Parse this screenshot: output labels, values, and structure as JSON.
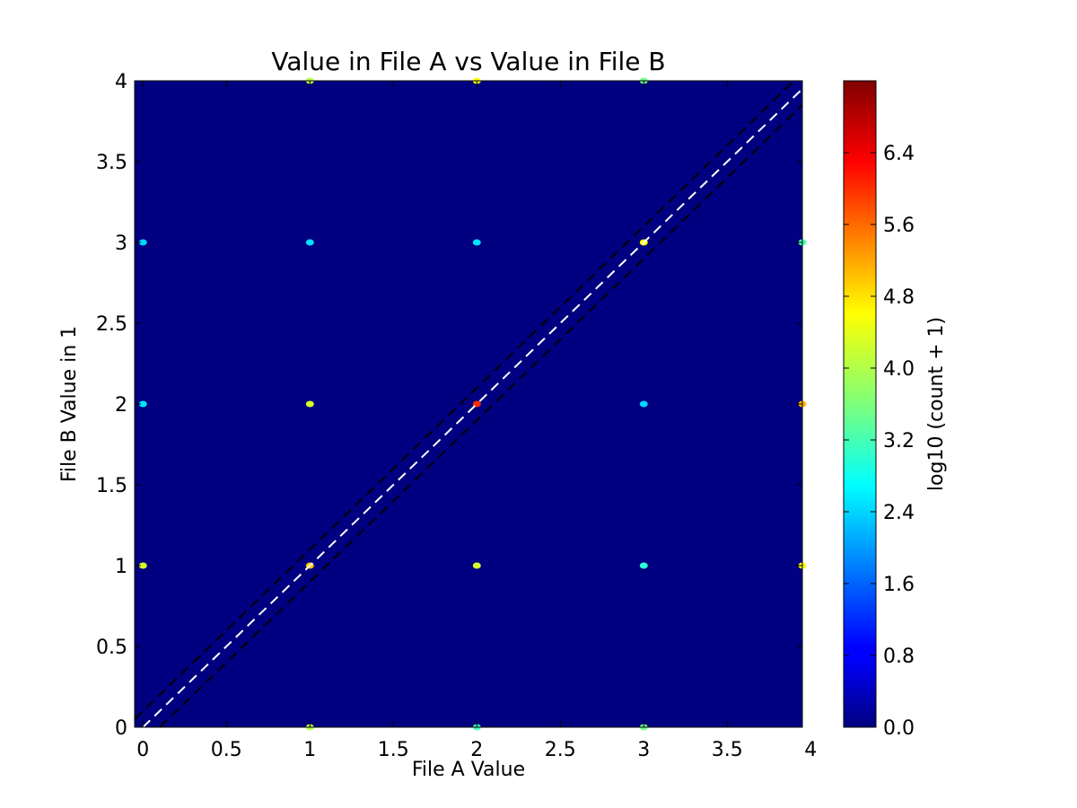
{
  "chart_data": {
    "type": "heatmap",
    "title": "Value in File A vs Value in File B",
    "xlabel": "File A Value",
    "ylabel": "File B Value in 1",
    "xlim": [
      -0.05,
      3.95
    ],
    "ylim": [
      0,
      4
    ],
    "xticks": [
      0,
      0.5,
      1,
      1.5,
      2,
      2.5,
      3,
      3.5,
      4
    ],
    "xtick_labels": [
      "0",
      "0.5",
      "1",
      "1.5",
      "2",
      "2.5",
      "3",
      "3.5",
      "4"
    ],
    "yticks": [
      0,
      0.5,
      1,
      1.5,
      2,
      2.5,
      3,
      3.5,
      4
    ],
    "ytick_labels": [
      "0",
      "0.5",
      "1",
      "1.5",
      "2",
      "2.5",
      "3",
      "3.5",
      "4"
    ],
    "grid": false,
    "background_value": 0.0,
    "colorbar": {
      "label": "log10 (count + 1)",
      "range": [
        0,
        7.2
      ],
      "ticks": [
        0.0,
        0.8,
        1.6,
        2.4,
        3.2,
        4.0,
        4.8,
        5.6,
        6.4
      ],
      "tick_labels": [
        "0.0",
        "0.8",
        "1.6",
        "2.4",
        "3.2",
        "4.0",
        "4.8",
        "5.6",
        "6.4"
      ],
      "colormap": "jet"
    },
    "points": [
      {
        "x": 1,
        "y": 1,
        "value": 4.9
      },
      {
        "x": 2,
        "y": 2,
        "value": 6.0
      },
      {
        "x": 3,
        "y": 3,
        "value": 4.5
      },
      {
        "x": 0,
        "y": 2,
        "value": 2.5
      },
      {
        "x": 1,
        "y": 2,
        "value": 4.2
      },
      {
        "x": 3,
        "y": 2,
        "value": 2.4
      },
      {
        "x": 4,
        "y": 2,
        "value": 5.0
      },
      {
        "x": 1,
        "y": 3,
        "value": 2.5
      },
      {
        "x": 2,
        "y": 3,
        "value": 2.5
      },
      {
        "x": 4,
        "y": 3,
        "value": 3.2
      },
      {
        "x": 0,
        "y": 3,
        "value": 2.4
      },
      {
        "x": 2,
        "y": 1,
        "value": 4.2
      },
      {
        "x": 3,
        "y": 1,
        "value": 3.0
      },
      {
        "x": 4,
        "y": 1,
        "value": 4.5
      },
      {
        "x": 0,
        "y": 1,
        "value": 4.2
      },
      {
        "x": 1,
        "y": 4,
        "value": 4.0
      },
      {
        "x": 2,
        "y": 4,
        "value": 4.5
      },
      {
        "x": 3,
        "y": 4,
        "value": 3.5
      },
      {
        "x": 1,
        "y": 0,
        "value": 4.0
      },
      {
        "x": 2,
        "y": 0,
        "value": 3.2
      },
      {
        "x": 3,
        "y": 0,
        "value": 3.5
      }
    ],
    "reference_lines": [
      {
        "name": "identity",
        "slope": 1,
        "intercept": 0,
        "color": "#ffffff",
        "dash": true
      },
      {
        "name": "upper-tolerance",
        "slope": 1,
        "intercept": 0.1,
        "color": "#000000",
        "dash": true
      },
      {
        "name": "lower-tolerance",
        "slope": 1,
        "intercept": -0.1,
        "color": "#000000",
        "dash": true
      }
    ]
  }
}
